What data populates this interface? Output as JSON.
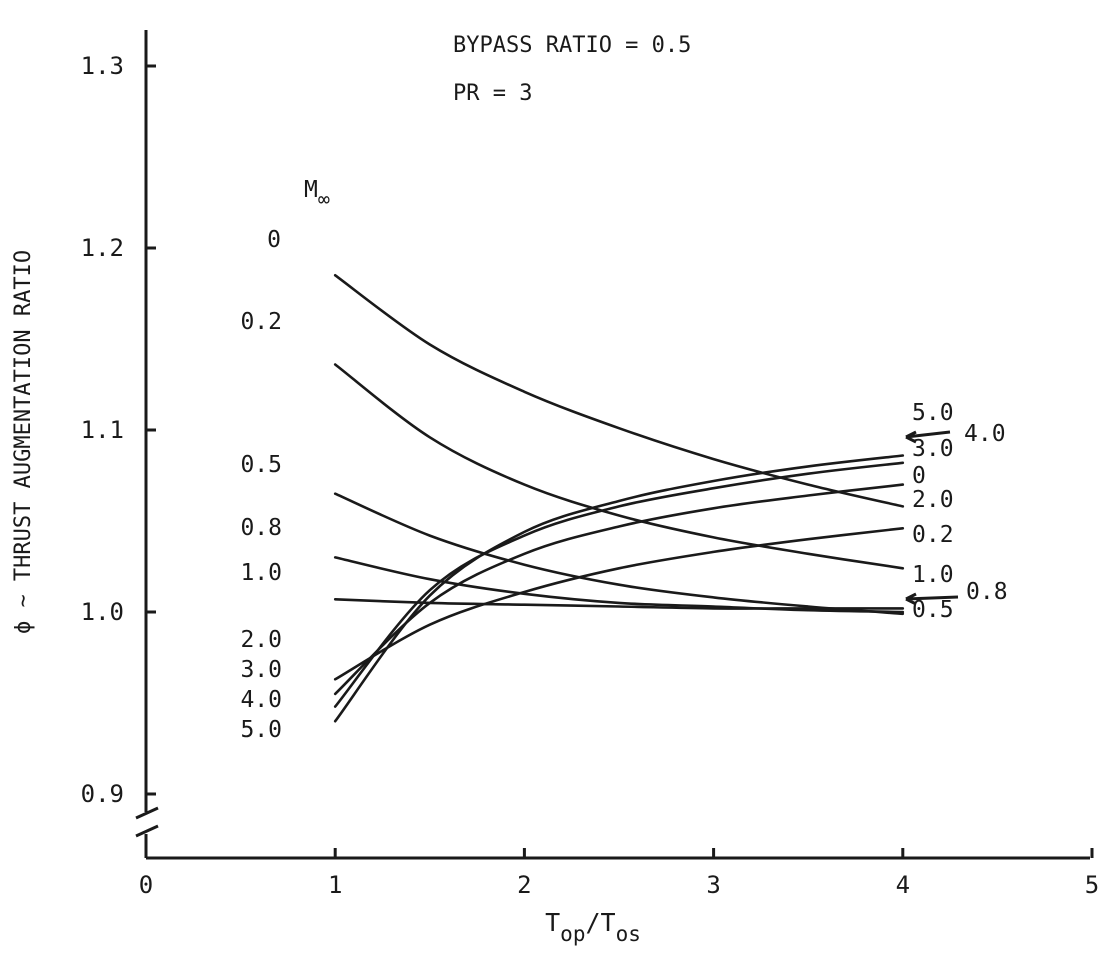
{
  "chart_data": {
    "type": "line",
    "title": "",
    "annotations": [
      "BYPASS RATIO = 0.5",
      "PR = 3"
    ],
    "xlabel": {
      "main": "T",
      "sub1": "op",
      "slash": "/T",
      "sub2": "os"
    },
    "ylabel": "ϕ ∼ THRUST AUGMENTATION RATIO",
    "xlim": [
      0,
      5
    ],
    "ylim": [
      0.87,
      1.3
    ],
    "y_axis_break": true,
    "x_ticks": [
      "0",
      "1",
      "2",
      "3",
      "4",
      "5"
    ],
    "x_tick_values": [
      0,
      1,
      2,
      3,
      4,
      5
    ],
    "y_ticks": [
      "0.9",
      "1.0",
      "1.1",
      "1.2",
      "1.3"
    ],
    "y_tick_values": [
      0.9,
      1.0,
      1.1,
      1.2,
      1.3
    ],
    "grid": false,
    "legend": "none",
    "series_header": {
      "main": "M",
      "sub": "∞"
    },
    "series": [
      {
        "name": "0",
        "x": [
          1,
          1.5,
          2,
          2.5,
          3,
          3.5,
          4
        ],
        "y": [
          1.185,
          1.147,
          1.121,
          1.101,
          1.084,
          1.07,
          1.058
        ],
        "left_label": "0",
        "right_label": "0"
      },
      {
        "name": "0.2",
        "x": [
          1,
          1.5,
          2,
          2.5,
          3,
          3.5,
          4
        ],
        "y": [
          1.136,
          1.096,
          1.07,
          1.053,
          1.041,
          1.032,
          1.024
        ],
        "left_label": "0.2",
        "right_label": "0.2"
      },
      {
        "name": "0.5",
        "x": [
          1,
          1.5,
          2,
          2.5,
          3,
          3.5,
          4
        ],
        "y": [
          1.065,
          1.042,
          1.026,
          1.015,
          1.008,
          1.003,
          0.999
        ],
        "left_label": "0.5",
        "right_label": "0.5"
      },
      {
        "name": "0.8",
        "x": [
          1,
          1.5,
          2,
          2.5,
          3,
          3.5,
          4
        ],
        "y": [
          1.03,
          1.018,
          1.01,
          1.005,
          1.003,
          1.001,
          1.0
        ],
        "left_label": "0.8",
        "right_label": "0.8"
      },
      {
        "name": "1.0",
        "x": [
          1,
          1.5,
          2,
          2.5,
          3,
          3.5,
          4
        ],
        "y": [
          1.007,
          1.005,
          1.004,
          1.003,
          1.002,
          1.002,
          1.002
        ],
        "left_label": "1.0",
        "right_label": "1.0"
      },
      {
        "name": "2.0",
        "x": [
          1,
          1.5,
          2,
          2.5,
          3,
          3.5,
          4
        ],
        "y": [
          0.963,
          0.993,
          1.011,
          1.024,
          1.033,
          1.04,
          1.046
        ],
        "left_label": "2.0",
        "right_label": "2.0"
      },
      {
        "name": "3.0",
        "x": [
          1,
          1.5,
          2,
          2.5,
          3,
          3.5,
          4
        ],
        "y": [
          0.955,
          1.005,
          1.032,
          1.047,
          1.057,
          1.064,
          1.07
        ],
        "left_label": "3.0",
        "right_label": "3.0"
      },
      {
        "name": "4.0",
        "x": [
          1,
          1.5,
          2,
          2.5,
          3,
          3.5,
          4
        ],
        "y": [
          0.948,
          1.012,
          1.042,
          1.058,
          1.068,
          1.076,
          1.082
        ],
        "left_label": "4.0",
        "right_label": "4.0"
      },
      {
        "name": "5.0",
        "x": [
          1,
          1.5,
          2,
          2.5,
          3,
          3.5,
          4
        ],
        "y": [
          0.94,
          1.009,
          1.044,
          1.061,
          1.072,
          1.08,
          1.086
        ],
        "left_label": "5.0",
        "right_label": "5.0"
      }
    ],
    "colors": {
      "ink": "#1a1a1a",
      "background": "#ffffff"
    }
  }
}
